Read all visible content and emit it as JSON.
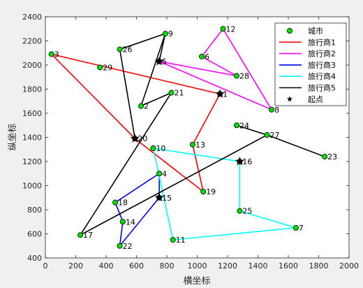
{
  "chart_data": {
    "type": "scatter",
    "xlabel": "横坐标",
    "ylabel": "纵坐标",
    "xlim": [
      0,
      2000
    ],
    "ylim": [
      400,
      2400
    ],
    "xticks": [
      0,
      200,
      400,
      600,
      800,
      1000,
      1200,
      1400,
      1600,
      1800,
      2000
    ],
    "yticks": [
      400,
      600,
      800,
      1000,
      1200,
      1400,
      1600,
      1800,
      2000,
      2200,
      2400
    ],
    "grid": false,
    "legend_position": "top-right",
    "cities": [
      {
        "id": "1",
        "x": 1150,
        "y": 1760
      },
      {
        "id": "2",
        "x": 630,
        "y": 1660
      },
      {
        "id": "3",
        "x": 40,
        "y": 2090
      },
      {
        "id": "4",
        "x": 750,
        "y": 1100
      },
      {
        "id": "5",
        "x": 750,
        "y": 2030
      },
      {
        "id": "6",
        "x": 1030,
        "y": 2070
      },
      {
        "id": "7",
        "x": 1650,
        "y": 650
      },
      {
        "id": "8",
        "x": 1490,
        "y": 1630
      },
      {
        "id": "9",
        "x": 790,
        "y": 2260
      },
      {
        "id": "10",
        "x": 710,
        "y": 1310
      },
      {
        "id": "11",
        "x": 840,
        "y": 550
      },
      {
        "id": "12",
        "x": 1170,
        "y": 2300
      },
      {
        "id": "13",
        "x": 970,
        "y": 1340
      },
      {
        "id": "14",
        "x": 510,
        "y": 700
      },
      {
        "id": "15",
        "x": 750,
        "y": 900
      },
      {
        "id": "16",
        "x": 1280,
        "y": 1200
      },
      {
        "id": "17",
        "x": 230,
        "y": 590
      },
      {
        "id": "18",
        "x": 460,
        "y": 860
      },
      {
        "id": "19",
        "x": 1040,
        "y": 950
      },
      {
        "id": "20",
        "x": 590,
        "y": 1390
      },
      {
        "id": "21",
        "x": 830,
        "y": 1770
      },
      {
        "id": "22",
        "x": 490,
        "y": 500
      },
      {
        "id": "23",
        "x": 1840,
        "y": 1240
      },
      {
        "id": "24",
        "x": 1260,
        "y": 1500
      },
      {
        "id": "25",
        "x": 1280,
        "y": 790
      },
      {
        "id": "26",
        "x": 490,
        "y": 2130
      },
      {
        "id": "27",
        "x": 1460,
        "y": 1420
      },
      {
        "id": "28",
        "x": 1260,
        "y": 1910
      },
      {
        "id": "29",
        "x": 360,
        "y": 1980
      }
    ],
    "series": [
      {
        "name": "旅行商1",
        "color": "#ff0000",
        "route": [
          "1",
          "3",
          "20",
          "19",
          "13",
          "1"
        ]
      },
      {
        "name": "旅行商2",
        "color": "#ff00ff",
        "route": [
          "5",
          "28",
          "6",
          "12",
          "8",
          "5"
        ]
      },
      {
        "name": "旅行商3",
        "color": "#0000ff",
        "route": [
          "15",
          "4",
          "18",
          "14",
          "22",
          "15"
        ]
      },
      {
        "name": "旅行商4",
        "color": "#00ffff",
        "route": [
          "16",
          "10",
          "11",
          "7",
          "25",
          "16"
        ]
      },
      {
        "name": "旅行商5",
        "color": "#000000",
        "route": [
          "20",
          "26",
          "9",
          "5"
        ]
      },
      {
        "name": "旅行商5",
        "color": "#000000",
        "route": [
          "9",
          "2",
          "21",
          "17",
          "27",
          "23"
        ]
      },
      {
        "name": "旅行商5",
        "color": "#000000",
        "route": [
          "24",
          "27"
        ]
      }
    ],
    "start_points": [
      "1",
      "5",
      "15",
      "16",
      "20"
    ],
    "legend": {
      "city": "城市",
      "routes": [
        "旅行商1",
        "旅行商2",
        "旅行商3",
        "旅行商4",
        "旅行商5"
      ],
      "route_colors": [
        "#ff0000",
        "#ff00ff",
        "#0000ff",
        "#00ffff",
        "#000000"
      ],
      "start": "起点"
    },
    "colors": {
      "city_fill": "#00e000",
      "city_edge": "#000000",
      "start_marker": "#000000"
    }
  }
}
